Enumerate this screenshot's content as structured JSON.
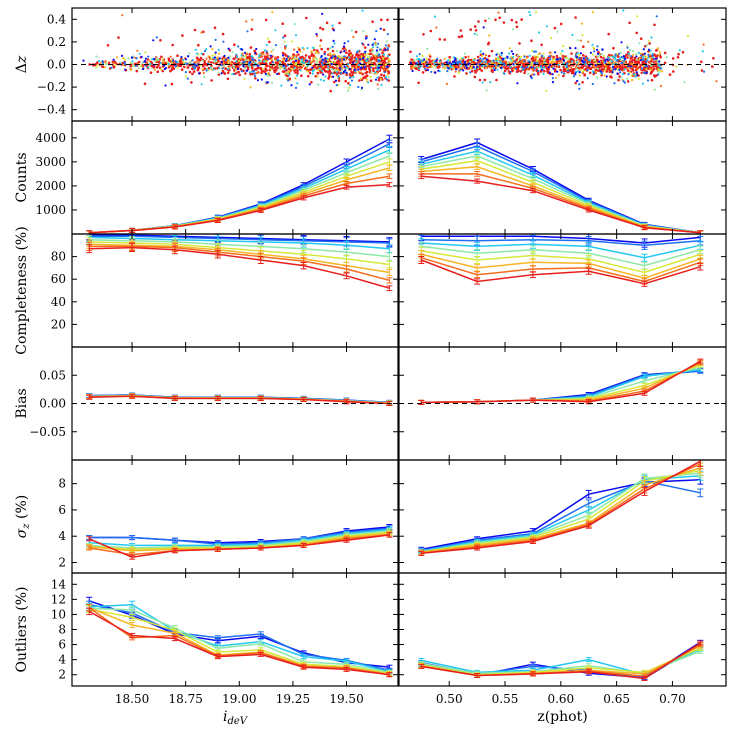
{
  "chart_data": {
    "type": "line",
    "colors": [
      "#0a0af0",
      "#1f6ff0",
      "#23c8f0",
      "#8ee8a8",
      "#d6e83a",
      "#f7b424",
      "#f36e1e",
      "#e81e1e"
    ],
    "left_xlabel": "i_deV",
    "right_xlabel": "z(phot)",
    "left": {
      "x": [
        18.3,
        18.5,
        18.7,
        18.9,
        19.1,
        19.3,
        19.5,
        19.7
      ],
      "xlim": [
        18.22,
        19.74
      ],
      "xticks": [
        18.5,
        18.75,
        19.0,
        19.25,
        19.5
      ],
      "xtick_labels": [
        "18.50",
        "18.75",
        "19.00",
        "19.25",
        "19.50"
      ]
    },
    "right": {
      "x": [
        0.475,
        0.525,
        0.575,
        0.625,
        0.675,
        0.725
      ],
      "xlim": [
        0.455,
        0.748
      ],
      "xticks": [
        0.5,
        0.55,
        0.6,
        0.65,
        0.7
      ],
      "xtick_labels": [
        "0.50",
        "0.55",
        "0.60",
        "0.65",
        "0.70"
      ]
    },
    "panels": [
      {
        "id": "delta-z",
        "ylabel": "Δz",
        "type": "scatter",
        "ylim": [
          -0.5,
          0.5
        ],
        "yticks": [
          -0.4,
          -0.2,
          0.0,
          0.2,
          0.4
        ],
        "ytick_labels": [
          "−0.4",
          "−0.2",
          "0.0",
          "0.2",
          "0.4"
        ],
        "zero_line": true
      },
      {
        "id": "counts",
        "ylabel": "Counts",
        "ylim": [
          0,
          4700
        ],
        "yticks": [
          1000,
          2000,
          3000,
          4000
        ],
        "ytick_labels": [
          "1000",
          "2000",
          "3000",
          "4000"
        ],
        "left": [
          [
            50,
            150,
            350,
            700,
            1250,
            2050,
            3000,
            3950
          ],
          [
            50,
            150,
            350,
            680,
            1220,
            1980,
            2850,
            3750
          ],
          [
            50,
            150,
            340,
            660,
            1180,
            1900,
            2700,
            3500
          ],
          [
            50,
            150,
            330,
            640,
            1140,
            1820,
            2550,
            3250
          ],
          [
            50,
            150,
            320,
            620,
            1100,
            1740,
            2400,
            3000
          ],
          [
            50,
            150,
            310,
            600,
            1060,
            1660,
            2250,
            2750
          ],
          [
            50,
            150,
            300,
            580,
            1020,
            1580,
            2100,
            2400
          ],
          [
            50,
            140,
            290,
            560,
            980,
            1500,
            1950,
            2050
          ]
        ],
        "right": [
          [
            3100,
            3800,
            2700,
            1400,
            400,
            50
          ],
          [
            3000,
            3650,
            2600,
            1350,
            380,
            50
          ],
          [
            2900,
            3450,
            2450,
            1300,
            360,
            50
          ],
          [
            2800,
            3250,
            2300,
            1250,
            340,
            50
          ],
          [
            2700,
            3050,
            2150,
            1180,
            320,
            50
          ],
          [
            2600,
            2800,
            2000,
            1120,
            300,
            50
          ],
          [
            2500,
            2500,
            1900,
            1060,
            280,
            50
          ],
          [
            2400,
            2200,
            1800,
            1000,
            260,
            50
          ]
        ]
      },
      {
        "id": "completeness",
        "ylabel": "Completeness (%)",
        "ylim": [
          0,
          100
        ],
        "yticks": [
          20,
          40,
          60,
          80
        ],
        "ytick_labels": [
          "20",
          "40",
          "60",
          "80"
        ],
        "left": [
          [
            99,
            99,
            98,
            97,
            96,
            95,
            94,
            93
          ],
          [
            98,
            98,
            97,
            96,
            95,
            94,
            93,
            92
          ],
          [
            97,
            96,
            95,
            94,
            93,
            92,
            90,
            87
          ],
          [
            95,
            94,
            93,
            91,
            89,
            87,
            84,
            80
          ],
          [
            93,
            92,
            91,
            88,
            85,
            82,
            78,
            73
          ],
          [
            91,
            90,
            89,
            86,
            82,
            78,
            72,
            66
          ],
          [
            89,
            89,
            88,
            84,
            80,
            76,
            69,
            59
          ],
          [
            87,
            88,
            86,
            82,
            77,
            72,
            63,
            52
          ]
        ],
        "right": [
          [
            98,
            98,
            98,
            96,
            92,
            97
          ],
          [
            95,
            94,
            95,
            94,
            90,
            94
          ],
          [
            92,
            89,
            91,
            89,
            79,
            90
          ],
          [
            89,
            83,
            86,
            83,
            72,
            86
          ],
          [
            85,
            77,
            81,
            78,
            66,
            82
          ],
          [
            82,
            70,
            75,
            74,
            61,
            78
          ],
          [
            79,
            64,
            69,
            70,
            58,
            75
          ],
          [
            77,
            58,
            64,
            67,
            56,
            71
          ]
        ]
      },
      {
        "id": "bias",
        "ylabel": "Bias",
        "ylim": [
          -0.1,
          0.1
        ],
        "yticks": [
          -0.05,
          0.0,
          0.05
        ],
        "ytick_labels": [
          "−0.05",
          "0.00",
          "0.05"
        ],
        "zero_line": true,
        "left": [
          [
            0.014,
            0.015,
            0.011,
            0.011,
            0.011,
            0.009,
            0.006,
            0.002
          ],
          [
            0.014,
            0.015,
            0.011,
            0.011,
            0.011,
            0.009,
            0.006,
            0.002
          ],
          [
            0.013,
            0.014,
            0.01,
            0.01,
            0.01,
            0.008,
            0.005,
            0.001
          ],
          [
            0.013,
            0.014,
            0.01,
            0.01,
            0.01,
            0.008,
            0.005,
            0.001
          ],
          [
            0.012,
            0.014,
            0.01,
            0.01,
            0.01,
            0.008,
            0.004,
            0.001
          ],
          [
            0.012,
            0.013,
            0.01,
            0.009,
            0.009,
            0.007,
            0.004,
            0.0
          ],
          [
            0.012,
            0.013,
            0.009,
            0.009,
            0.009,
            0.007,
            0.004,
            0.0
          ],
          [
            0.011,
            0.013,
            0.009,
            0.009,
            0.009,
            0.007,
            0.003,
            0.0
          ]
        ],
        "right": [
          [
            0.002,
            0.003,
            0.006,
            0.016,
            0.051,
            0.058
          ],
          [
            0.002,
            0.003,
            0.006,
            0.014,
            0.05,
            0.057
          ],
          [
            0.002,
            0.003,
            0.006,
            0.012,
            0.048,
            0.06
          ],
          [
            0.002,
            0.003,
            0.006,
            0.01,
            0.04,
            0.064
          ],
          [
            0.002,
            0.003,
            0.006,
            0.008,
            0.032,
            0.068
          ],
          [
            0.002,
            0.003,
            0.006,
            0.006,
            0.027,
            0.071
          ],
          [
            0.002,
            0.003,
            0.006,
            0.004,
            0.022,
            0.073
          ],
          [
            0.002,
            0.003,
            0.006,
            0.003,
            0.018,
            0.075
          ]
        ]
      },
      {
        "id": "sigma-z",
        "ylabel": "σz (%)",
        "ylim": [
          1.2,
          9.8
        ],
        "yticks": [
          2,
          4,
          6,
          8
        ],
        "ytick_labels": [
          "2",
          "4",
          "6",
          "8"
        ],
        "left": [
          [
            3.9,
            3.9,
            3.7,
            3.5,
            3.6,
            3.8,
            4.4,
            4.7
          ],
          [
            3.9,
            3.9,
            3.7,
            3.4,
            3.5,
            3.8,
            4.3,
            4.6
          ],
          [
            3.5,
            3.3,
            3.3,
            3.3,
            3.4,
            3.7,
            4.2,
            4.5
          ],
          [
            3.3,
            3.1,
            3.2,
            3.2,
            3.3,
            3.6,
            4.1,
            4.4
          ],
          [
            3.2,
            3.0,
            3.1,
            3.1,
            3.2,
            3.5,
            4.0,
            4.3
          ],
          [
            3.2,
            2.9,
            3.0,
            3.0,
            3.1,
            3.4,
            3.9,
            4.2
          ],
          [
            3.1,
            2.6,
            2.9,
            3.0,
            3.1,
            3.3,
            3.8,
            4.1
          ],
          [
            3.8,
            2.4,
            2.9,
            3.0,
            3.1,
            3.3,
            3.7,
            4.1
          ]
        ],
        "right": [
          [
            3.0,
            3.8,
            4.4,
            7.2,
            8.1,
            8.3
          ],
          [
            2.9,
            3.7,
            4.2,
            6.5,
            8.2,
            7.3
          ],
          [
            2.9,
            3.6,
            4.1,
            6.0,
            8.3,
            8.6
          ],
          [
            2.8,
            3.5,
            4.0,
            5.6,
            8.4,
            8.8
          ],
          [
            2.8,
            3.4,
            3.9,
            5.3,
            8.2,
            9.0
          ],
          [
            2.8,
            3.3,
            3.8,
            5.0,
            7.9,
            9.2
          ],
          [
            2.7,
            3.2,
            3.7,
            4.9,
            7.6,
            9.5
          ],
          [
            2.7,
            3.1,
            3.6,
            4.8,
            7.4,
            9.7
          ]
        ]
      },
      {
        "id": "outliers",
        "ylabel": "Outliers (%)",
        "ylim": [
          0.5,
          15.5
        ],
        "yticks": [
          2,
          4,
          6,
          8,
          10,
          12,
          14
        ],
        "ytick_labels": [
          "2",
          "4",
          "6",
          "8",
          "10",
          "12",
          "14"
        ],
        "left": [
          [
            11.8,
            9.9,
            7.4,
            6.5,
            7.1,
            4.9,
            3.6,
            3.0
          ],
          [
            11.3,
            10.2,
            7.6,
            6.9,
            7.4,
            4.7,
            3.9,
            2.6
          ],
          [
            11.0,
            11.3,
            7.8,
            5.8,
            6.4,
            4.4,
            3.8,
            2.4
          ],
          [
            10.8,
            10.6,
            8.2,
            5.5,
            6.1,
            3.7,
            3.4,
            2.3
          ],
          [
            10.7,
            9.6,
            7.9,
            5.0,
            5.3,
            3.4,
            3.1,
            2.2
          ],
          [
            10.9,
            8.6,
            7.5,
            4.6,
            5.0,
            3.2,
            2.9,
            2.1
          ],
          [
            10.9,
            6.9,
            7.2,
            4.5,
            4.9,
            3.1,
            2.9,
            2.0
          ],
          [
            10.4,
            7.2,
            6.8,
            4.4,
            4.7,
            3.0,
            2.7,
            2.0
          ]
        ],
        "right": [
          [
            3.4,
            1.9,
            3.4,
            2.2,
            1.6,
            6.3
          ],
          [
            3.6,
            2.1,
            3.1,
            2.6,
            1.5,
            6.0
          ],
          [
            3.9,
            2.3,
            2.6,
            4.0,
            2.0,
            5.4
          ],
          [
            3.5,
            2.2,
            2.4,
            3.2,
            2.2,
            5.1
          ],
          [
            3.3,
            2.0,
            2.3,
            2.9,
            2.3,
            5.5
          ],
          [
            3.2,
            1.9,
            2.2,
            2.6,
            2.1,
            5.8
          ],
          [
            3.1,
            1.9,
            2.1,
            2.5,
            1.8,
            6.0
          ],
          [
            3.1,
            1.9,
            2.1,
            2.4,
            1.5,
            6.2
          ]
        ]
      }
    ]
  }
}
